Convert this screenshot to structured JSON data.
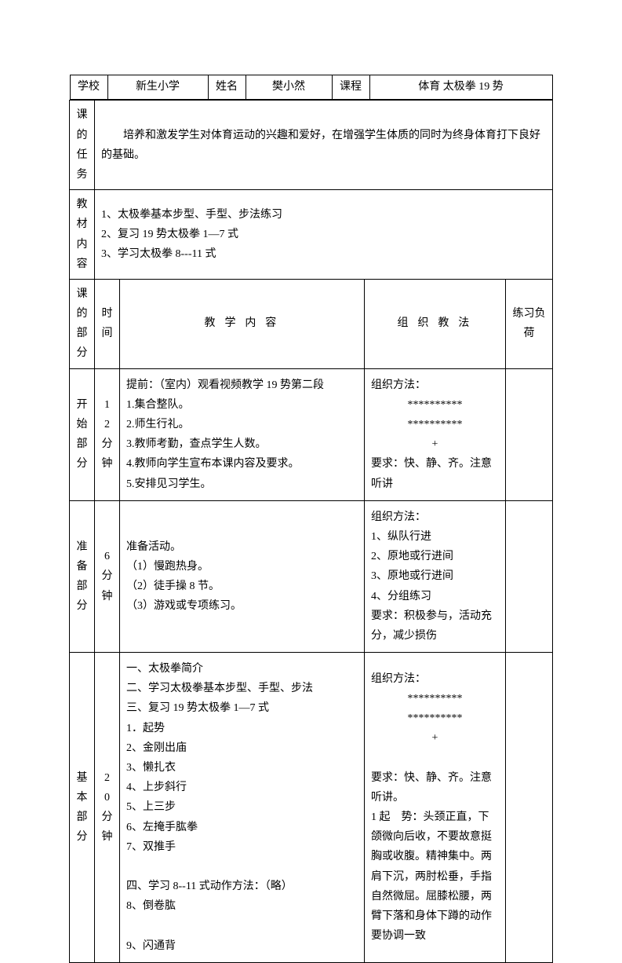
{
  "header": {
    "school_label": "学校",
    "school_value": "新生小学",
    "name_label": "姓名",
    "name_value": "樊小然",
    "course_label": "课程",
    "course_value": "体育 太极拳 19 势"
  },
  "task": {
    "label": "课 的任 务",
    "value": "培养和激发学生对体育运动的兴趣和爱好，在增强学生体质的同时为终身体育打下良好的基础。"
  },
  "material": {
    "label": "教材内容",
    "lines": [
      "1、太极拳基本步型、手型、步法练习",
      "2、复习 19 势太极拳 1—7 式",
      "3、学习太极拳 8---11 式"
    ]
  },
  "column_headers": {
    "section": "课的部分",
    "time": "时间",
    "teaching": "教  学  内  容",
    "method": "组  织  教  法",
    "load": "练习负荷"
  },
  "rows": [
    {
      "section": "开始部分",
      "time": "12分钟",
      "content": [
        "提前：（室内）观看视频教学 19 势第二段",
        "1.集合整队。",
        "2.师生行礼。",
        "3.教师考勤，查点学生人数。",
        "4.教师向学生宣布本课内容及要求。",
        "5.安排见习学生。"
      ],
      "method": [
        "组织方法：",
        "**********",
        "**********",
        "+",
        "要求：快、静、齐。注意听讲"
      ],
      "load": ""
    },
    {
      "section": "准备部分",
      "time": "6分钟",
      "content": [
        "准备活动。",
        "（1）慢跑热身。",
        "（2）徒手操 8 节。",
        "（3）游戏或专项练习。"
      ],
      "method": [
        "组织方法：",
        "1、纵队行进",
        "2、原地或行进间",
        "3、原地或行进间",
        "4、分组练习",
        "要求：积极参与，活动充分，减少损伤"
      ],
      "load": ""
    },
    {
      "section": "基本部分",
      "time": "20分钟",
      "content": [
        "一、太极拳简介",
        "二、学习太极拳基本步型、手型、步法",
        "三、复习 19 势太极拳 1—7 式",
        "1．起势",
        "2、金刚出庙",
        "3、懒扎衣",
        "4、上步斜行",
        "5、上三步",
        "6、左掩手肱拳",
        "7、双推手",
        "",
        "四、学习 8--11 式动作方法：（略）",
        "8、倒卷肱",
        "",
        "9、闪通背"
      ],
      "method": [
        "组织方法：",
        "**********",
        "**********",
        "+",
        "",
        "要求：快、静、齐。注意听讲。",
        "1 起　势：头颈正直，下颌微向后收，不要故意挺胸或收腹。精神集中。两肩下沉，两肘松垂，手指自然微屈。屈膝松腰，两臂下落和身体下蹲的动作要协调一致"
      ],
      "load": ""
    }
  ]
}
